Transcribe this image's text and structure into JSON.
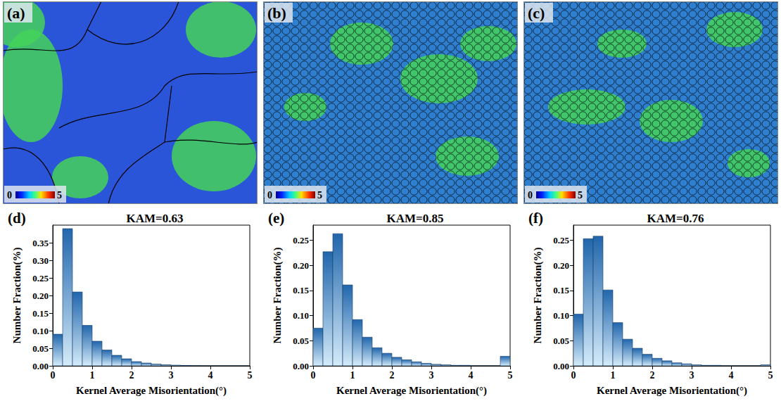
{
  "maps": [
    {
      "label": "(a)",
      "colorbar": {
        "min": 0,
        "max": 5
      }
    },
    {
      "label": "(b)",
      "colorbar": {
        "min": 0,
        "max": 5
      }
    },
    {
      "label": "(c)",
      "colorbar": {
        "min": 0,
        "max": 5
      }
    }
  ],
  "chart_data": [
    {
      "type": "histogram",
      "panel_label": "(d)",
      "title": "KAM=0.63",
      "x_label": "Kernel Average Misorientation(°)",
      "y_label": "Number Fraction(%)",
      "bins": [
        0,
        0.25,
        0.5,
        0.75,
        1,
        1.25,
        1.5,
        1.75,
        2,
        2.25,
        2.5,
        2.75,
        3,
        3.25,
        3.5,
        3.75,
        4,
        4.25,
        4.5,
        4.75,
        5
      ],
      "values": [
        0.09,
        0.39,
        0.21,
        0.115,
        0.07,
        0.045,
        0.03,
        0.02,
        0.012,
        0.008,
        0.005,
        0.003,
        0.002,
        0.001,
        0.0005,
        0,
        0,
        0,
        0,
        0
      ],
      "color": "#2166ac",
      "xlim": [
        0,
        5
      ],
      "xticks": [
        0,
        1,
        2,
        3,
        4,
        5
      ],
      "ylim": [
        0,
        0.4
      ],
      "yticks": [
        {
          "value": 0,
          "label": "0.00"
        },
        {
          "value": 0.05,
          "label": "0.05"
        },
        {
          "value": 0.1,
          "label": "0.10"
        },
        {
          "value": 0.15,
          "label": "0.15"
        },
        {
          "value": 0.2,
          "label": "0.20"
        },
        {
          "value": 0.25,
          "label": "0.25"
        },
        {
          "value": 0.3,
          "label": "0.30"
        },
        {
          "value": 0.35,
          "label": "0.35"
        }
      ]
    },
    {
      "type": "histogram",
      "panel_label": "(e)",
      "title": "KAM=0.85",
      "x_label": "Kernel Average Misorientation(°)",
      "y_label": "Number Fraction(%)",
      "bins": [
        0,
        0.25,
        0.5,
        0.75,
        1,
        1.25,
        1.5,
        1.75,
        2,
        2.25,
        2.5,
        2.75,
        3,
        3.25,
        3.5,
        3.75,
        4,
        4.25,
        4.5,
        4.75,
        5
      ],
      "values": [
        0.075,
        0.227,
        0.263,
        0.161,
        0.092,
        0.057,
        0.036,
        0.025,
        0.017,
        0.012,
        0.008,
        0.005,
        0.003,
        0.002,
        0.001,
        0.001,
        0,
        0,
        0,
        0.019
      ],
      "color": "#2166ac",
      "xlim": [
        0,
        5
      ],
      "xticks": [
        0,
        1,
        2,
        3,
        4,
        5
      ],
      "ylim": [
        0,
        0.28
      ],
      "yticks": [
        {
          "value": 0,
          "label": "0.00"
        },
        {
          "value": 0.05,
          "label": "0.05"
        },
        {
          "value": 0.1,
          "label": "0.10"
        },
        {
          "value": 0.15,
          "label": "0.15"
        },
        {
          "value": 0.2,
          "label": "0.20"
        },
        {
          "value": 0.25,
          "label": "0.25"
        }
      ]
    },
    {
      "type": "histogram",
      "panel_label": "(f)",
      "title": "KAM=0.76",
      "x_label": "Kernel Average Misorientation(°)",
      "y_label": "Number Fraction(%)",
      "bins": [
        0,
        0.25,
        0.5,
        0.75,
        1,
        1.25,
        1.5,
        1.75,
        2,
        2.25,
        2.5,
        2.75,
        3,
        3.25,
        3.5,
        3.75,
        4,
        4.25,
        4.5,
        4.75,
        5
      ],
      "values": [
        0.103,
        0.253,
        0.258,
        0.151,
        0.086,
        0.053,
        0.035,
        0.023,
        0.015,
        0.01,
        0.006,
        0.004,
        0.002,
        0.001,
        0.001,
        0,
        0,
        0,
        0,
        0.002
      ],
      "color": "#2166ac",
      "xlim": [
        0,
        5
      ],
      "xticks": [
        0,
        1,
        2,
        3,
        4,
        5
      ],
      "ylim": [
        0,
        0.28
      ],
      "yticks": [
        {
          "value": 0,
          "label": "0.00"
        },
        {
          "value": 0.05,
          "label": "0.05"
        },
        {
          "value": 0.1,
          "label": "0.10"
        },
        {
          "value": 0.15,
          "label": "0.15"
        },
        {
          "value": 0.2,
          "label": "0.20"
        },
        {
          "value": 0.25,
          "label": "0.25"
        }
      ]
    }
  ]
}
